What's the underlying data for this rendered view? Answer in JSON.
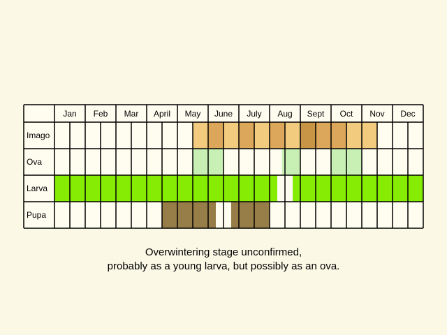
{
  "months": [
    "Jan",
    "Feb",
    "Mar",
    "April",
    "May",
    "June",
    "July",
    "Aug",
    "Sept",
    "Oct",
    "Nov",
    "Dec"
  ],
  "stages": [
    "Imago",
    "Ova",
    "Larva",
    "Pupa"
  ],
  "colors": {
    "background": "#fbf8e6",
    "cell": "#fffdf0",
    "imago_light": "#f3cb7e",
    "imago_mid": "#dca75a",
    "imago_dark": "#c89446",
    "ova": "#c9f0b4",
    "larva": "#86ec04",
    "pupa": "#977d48",
    "grid": "#000000"
  },
  "periods": {
    "Imago": [
      {
        "from": 9,
        "to": 10,
        "shade": "light"
      },
      {
        "from": 10,
        "to": 11,
        "shade": "mid"
      },
      {
        "from": 11,
        "to": 12,
        "shade": "light"
      },
      {
        "from": 12,
        "to": 13,
        "shade": "mid"
      },
      {
        "from": 13,
        "to": 14,
        "shade": "light"
      },
      {
        "from": 14,
        "to": 15,
        "shade": "mid"
      },
      {
        "from": 15,
        "to": 16,
        "shade": "light"
      },
      {
        "from": 16,
        "to": 17,
        "shade": "dark"
      },
      {
        "from": 17,
        "to": 18,
        "shade": "mid"
      },
      {
        "from": 18,
        "to": 19,
        "shade": "mid"
      },
      {
        "from": 19,
        "to": 21,
        "shade": "light"
      }
    ],
    "Ova": [
      {
        "from": 9,
        "to": 11
      },
      {
        "from": 14.8,
        "to": 16
      },
      {
        "from": 18,
        "to": 20
      }
    ],
    "Larva": [
      {
        "from": 0,
        "to": 14.5
      },
      {
        "from": 15.5,
        "to": 24
      }
    ],
    "Pupa": [
      {
        "from": 7,
        "to": 10.5
      },
      {
        "from": 11.5,
        "to": 14
      }
    ]
  },
  "note_lines": [
    "Overwintering stage unconfirmed,",
    "probably as a young larva, but possibly as an ova."
  ]
}
